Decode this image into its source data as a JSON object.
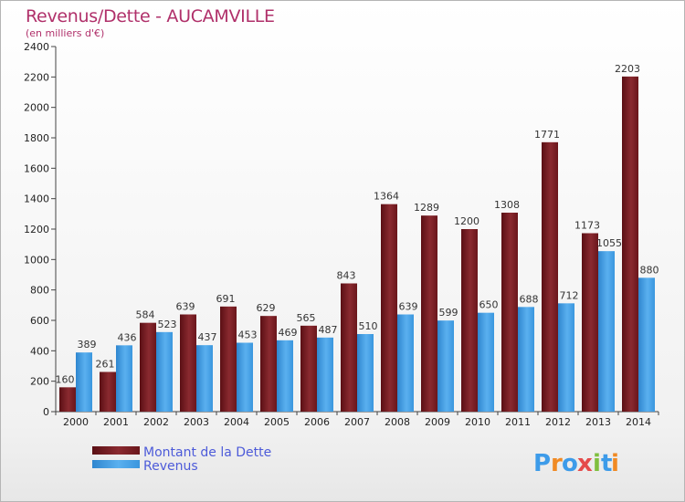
{
  "chart_data": {
    "type": "bar",
    "title": "Revenus/Dette - AUCAMVILLE",
    "subtitle": "(en milliers d'€)",
    "categories": [
      "2000",
      "2001",
      "2002",
      "2003",
      "2004",
      "2005",
      "2006",
      "2007",
      "2008",
      "2009",
      "2010",
      "2011",
      "2012",
      "2013",
      "2014"
    ],
    "series": [
      {
        "name": "Montant de la Dette",
        "color": "#7a1a1f",
        "values": [
          160,
          261,
          584,
          639,
          691,
          629,
          565,
          843,
          1364,
          1289,
          1200,
          1308,
          1771,
          1173,
          2203
        ]
      },
      {
        "name": "Revenus",
        "color": "#3f9ee0",
        "values": [
          389,
          436,
          523,
          437,
          453,
          469,
          487,
          510,
          639,
          599,
          650,
          688,
          712,
          1055,
          880
        ]
      }
    ],
    "ylim": [
      0,
      2400
    ],
    "yticks": [
      0,
      200,
      400,
      600,
      800,
      1000,
      1200,
      1400,
      1600,
      1800,
      2000,
      2200,
      2400
    ],
    "grid": false,
    "legend": "bottom-left"
  },
  "logo": {
    "text": "Proxiti",
    "letters": [
      "P",
      "r",
      "o",
      "x",
      "i",
      "t",
      "i"
    ],
    "colors": [
      "#3d9be9",
      "#f08a24",
      "#3d9be9",
      "#e54b4b",
      "#7fbf3f",
      "#3d9be9",
      "#f08a24"
    ]
  }
}
